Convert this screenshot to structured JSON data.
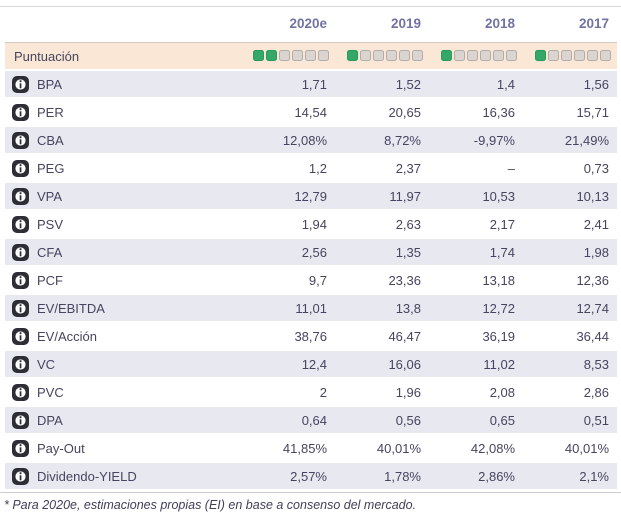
{
  "table": {
    "columns": [
      "2020e",
      "2019",
      "2018",
      "2017"
    ],
    "score_row": {
      "label": "Puntuación",
      "max": 6,
      "scores": [
        2,
        1,
        1,
        1
      ]
    },
    "rows": [
      {
        "label": "BPA",
        "values": [
          "1,71",
          "1,52",
          "1,4",
          "1,56"
        ]
      },
      {
        "label": "PER",
        "values": [
          "14,54",
          "20,65",
          "16,36",
          "15,71"
        ]
      },
      {
        "label": "CBA",
        "values": [
          "12,08%",
          "8,72%",
          "-9,97%",
          "21,49%"
        ]
      },
      {
        "label": "PEG",
        "values": [
          "1,2",
          "2,37",
          "–",
          "0,73"
        ]
      },
      {
        "label": "VPA",
        "values": [
          "12,79",
          "11,97",
          "10,53",
          "10,13"
        ]
      },
      {
        "label": "PSV",
        "values": [
          "1,94",
          "2,63",
          "2,17",
          "2,41"
        ]
      },
      {
        "label": "CFA",
        "values": [
          "2,56",
          "1,35",
          "1,74",
          "1,98"
        ]
      },
      {
        "label": "PCF",
        "values": [
          "9,7",
          "23,36",
          "13,18",
          "12,36"
        ]
      },
      {
        "label": "EV/EBITDA",
        "values": [
          "11,01",
          "13,8",
          "12,72",
          "12,74"
        ]
      },
      {
        "label": "EV/Acción",
        "values": [
          "38,76",
          "46,47",
          "36,19",
          "36,44"
        ]
      },
      {
        "label": "VC",
        "values": [
          "12,4",
          "16,06",
          "11,02",
          "8,53"
        ]
      },
      {
        "label": "PVC",
        "values": [
          "2",
          "1,96",
          "2,08",
          "2,86"
        ]
      },
      {
        "label": "DPA",
        "values": [
          "0,64",
          "0,56",
          "0,65",
          "0,51"
        ]
      },
      {
        "label": "Pay-Out",
        "values": [
          "41,85%",
          "40,01%",
          "42,08%",
          "40,01%"
        ]
      },
      {
        "label": "Dividendo-YIELD",
        "values": [
          "2,57%",
          "1,78%",
          "2,86%",
          "2,1%"
        ]
      }
    ],
    "footnote": "* Para 2020e, estimaciones propias (EI) en base a consenso del mercado.",
    "icon_name": "info-icon"
  },
  "colors": {
    "score_filled": "#33a867",
    "score_empty": "#dad5d1",
    "score_row_bg": "#fbe7d5",
    "alt_row_bg": "#e8e8f1",
    "header_text": "#7373a3",
    "body_text": "#45455f",
    "icon_bg": "#2d2d35"
  }
}
